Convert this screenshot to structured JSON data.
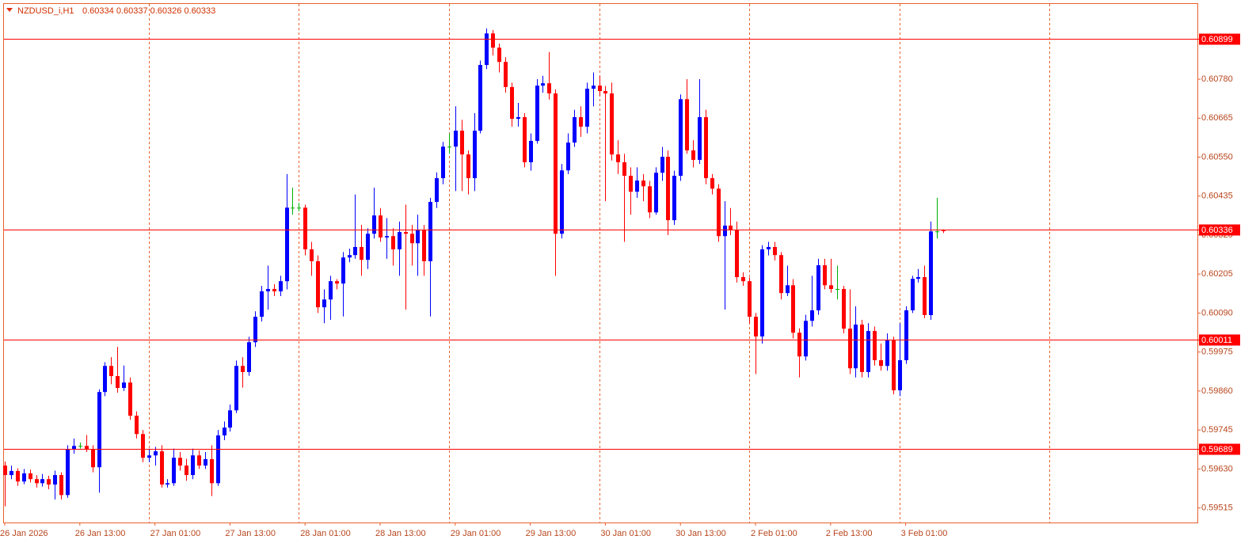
{
  "chart_data": {
    "type": "candlestick",
    "title": "NZDUSD_i,H1",
    "quote": "0.60334 0.60337 0.60326 0.60333",
    "up_color": "#0000ff",
    "down_color": "#ff0000",
    "doji_color": "#00b000",
    "level_color": "#ff0000",
    "ylim": [
      0.59472,
      0.61002
    ],
    "yticks": [
      {
        "value": 0.6078,
        "label": "0.60780"
      },
      0.60665,
      {
        "value": 0.6055,
        "label": "0.60550"
      },
      0.60435,
      {
        "value": 0.6032,
        "label": "0.60320"
      },
      0.60205,
      {
        "value": 0.6009,
        "label": "0.60090"
      },
      0.59975,
      {
        "value": 0.5986,
        "label": "0.59860"
      },
      0.59745,
      {
        "value": 0.5963,
        "label": "0.59630"
      },
      0.59515
    ],
    "levels": [
      0.60899,
      0.60336,
      0.60011,
      0.59689
    ],
    "categories": [
      "26 Jan 2026",
      null,
      null,
      null,
      null,
      null,
      null,
      null,
      null,
      null,
      null,
      null,
      "26 Jan 13:00",
      null,
      null,
      null,
      null,
      null,
      null,
      null,
      null,
      null,
      null,
      null,
      "27 Jan 01:00",
      null,
      null,
      null,
      null,
      null,
      null,
      null,
      null,
      null,
      null,
      null,
      "27 Jan 13:00",
      null,
      null,
      null,
      null,
      null,
      null,
      null,
      null,
      null,
      null,
      null,
      "28 Jan 01:00",
      null,
      null,
      null,
      null,
      null,
      null,
      null,
      null,
      null,
      null,
      null,
      "28 Jan 13:00",
      null,
      null,
      null,
      null,
      null,
      null,
      null,
      null,
      null,
      null,
      null,
      "29 Jan 01:00",
      null,
      null,
      null,
      null,
      null,
      null,
      null,
      null,
      null,
      null,
      null,
      "29 Jan 13:00",
      null,
      null,
      null,
      null,
      null,
      null,
      null,
      null,
      null,
      null,
      null,
      "30 Jan 01:00",
      null,
      null,
      null,
      null,
      null,
      null,
      null,
      null,
      null,
      null,
      null,
      "30 Jan 13:00",
      null,
      null,
      null,
      null,
      null,
      null,
      null,
      null,
      null,
      null,
      null,
      "2 Feb 01:00",
      null,
      null,
      null,
      null,
      null,
      null,
      null,
      null,
      null,
      null,
      null,
      "2 Feb 13:00",
      null,
      null,
      null,
      null,
      null,
      null,
      null,
      null,
      null,
      null,
      null,
      "3 Feb 01:00",
      null,
      null,
      null,
      null,
      null,
      null
    ],
    "open": [
      0.5964,
      0.59612,
      0.59624,
      0.59593,
      0.59617,
      0.596,
      0.59588,
      0.596,
      0.59584,
      0.59612,
      0.59553,
      0.59687,
      0.59698,
      0.59698,
      0.59687,
      0.59635,
      0.59857,
      0.59934,
      0.59904,
      0.59869,
      0.59885,
      0.59787,
      0.59733,
      0.59663,
      0.5967,
      0.59682,
      0.59584,
      0.59588,
      0.59663,
      0.5964,
      0.59612,
      0.5967,
      0.5964,
      0.59659,
      0.59588,
      0.59729,
      0.59752,
      0.59803,
      0.59934,
      0.59916,
      0.60004,
      0.60079,
      0.60154,
      0.60161,
      0.60154,
      0.60184,
      0.60401,
      0.60401,
      0.60401,
      0.60278,
      0.60243,
      0.60107,
      0.6013,
      0.60184,
      0.60177,
      0.60254,
      0.60261,
      0.60285,
      0.60247,
      0.60324,
      0.60378,
      0.60313,
      0.60317,
      0.60278,
      0.60329,
      0.60324,
      0.60296,
      0.60336,
      0.60243,
      0.60418,
      0.60488,
      0.60581,
      0.60581,
      0.60628,
      0.60558,
      0.60488,
      0.60628,
      0.60822,
      0.60915,
      0.60873,
      0.60831,
      0.60757,
      0.60663,
      0.60668,
      0.60535,
      0.60598,
      0.60761,
      0.60768,
      0.60738,
      0.60324,
      0.60511,
      0.60593,
      0.60668,
      0.6064,
      0.60752,
      0.60761,
      0.60745,
      0.60738,
      0.60558,
      0.60535,
      0.60495,
      0.60448,
      0.60481,
      0.60464,
      0.60387,
      0.60504,
      0.60551,
      0.60364,
      0.60495,
      0.60721,
      0.6057,
      0.60542,
      0.60668,
      0.60488,
      0.60457,
      0.60317,
      0.60348,
      0.60336,
      0.60196,
      0.60184,
      0.60079,
      0.60021,
      0.60278,
      0.60285,
      0.60261,
      0.60149,
      0.60172,
      0.60032,
      0.59962,
      0.60067,
      0.60098,
      0.60231,
      0.60172,
      0.60161,
      0.60161,
      0.60044,
      0.59927,
      0.60056,
      0.59916,
      0.60037,
      0.59951,
      0.59934,
      0.60009,
      0.59862,
      0.59951,
      0.60098,
      0.60191,
      0.60196,
      0.60084,
      0.60331,
      0.60334
    ],
    "high": [
      0.59652,
      0.5964,
      0.59632,
      0.5963,
      0.59628,
      0.59612,
      0.59615,
      0.5961,
      0.59625,
      0.5962,
      0.597,
      0.5972,
      0.59708,
      0.5973,
      0.597,
      0.59865,
      0.59945,
      0.5996,
      0.5999,
      0.59935,
      0.599,
      0.598,
      0.59745,
      0.5969,
      0.59695,
      0.597,
      0.596,
      0.5969,
      0.5968,
      0.5966,
      0.5969,
      0.59685,
      0.5968,
      0.597,
      0.59745,
      0.5977,
      0.5982,
      0.5995,
      0.5996,
      0.6002,
      0.60095,
      0.6017,
      0.6023,
      0.60175,
      0.602,
      0.605,
      0.6046,
      0.60415,
      0.6041,
      0.603,
      0.6026,
      0.6016,
      0.602,
      0.6019,
      0.6027,
      0.6028,
      0.6044,
      0.6035,
      0.6034,
      0.6046,
      0.604,
      0.6037,
      0.6034,
      0.6036,
      0.6041,
      0.6035,
      0.6038,
      0.6035,
      0.6043,
      0.60505,
      0.60595,
      0.6062,
      0.607,
      0.6066,
      0.6057,
      0.6068,
      0.60835,
      0.6093,
      0.60925,
      0.60885,
      0.60845,
      0.6077,
      0.6071,
      0.6068,
      0.6062,
      0.6078,
      0.6079,
      0.6086,
      0.6075,
      0.6053,
      0.6062,
      0.6069,
      0.607,
      0.6077,
      0.608,
      0.6079,
      0.6076,
      0.6077,
      0.606,
      0.6056,
      0.6052,
      0.6052,
      0.605,
      0.6048,
      0.6052,
      0.6058,
      0.6057,
      0.6051,
      0.60735,
      0.6078,
      0.606,
      0.6078,
      0.6069,
      0.605,
      0.6047,
      0.6042,
      0.604,
      0.6036,
      0.6021,
      0.60195,
      0.6009,
      0.6029,
      0.603,
      0.603,
      0.6027,
      0.6023,
      0.6019,
      0.60045,
      0.60085,
      0.602,
      0.6025,
      0.6025,
      0.6025,
      0.6023,
      0.6017,
      0.6016,
      0.6011,
      0.6007,
      0.6006,
      0.6005,
      0.6,
      0.6003,
      0.6002,
      0.6006,
      0.6011,
      0.602,
      0.6022,
      0.6023,
      0.6036,
      0.6043,
      0.60337
    ],
    "low": [
      0.5952,
      0.596,
      0.5958,
      0.59585,
      0.5959,
      0.59575,
      0.59578,
      0.5957,
      0.5954,
      0.5954,
      0.59545,
      0.59675,
      0.5969,
      0.5968,
      0.5962,
      0.5956,
      0.59845,
      0.5988,
      0.59855,
      0.5986,
      0.59775,
      0.5972,
      0.5965,
      0.5965,
      0.5964,
      0.59575,
      0.59575,
      0.5958,
      0.59625,
      0.59595,
      0.596,
      0.5963,
      0.5963,
      0.5955,
      0.5958,
      0.59715,
      0.5974,
      0.59795,
      0.5987,
      0.59905,
      0.5999,
      0.60065,
      0.601,
      0.6014,
      0.6014,
      0.6016,
      0.6038,
      0.6039,
      0.6026,
      0.602,
      0.6009,
      0.6006,
      0.6007,
      0.6016,
      0.6008,
      0.6024,
      0.6025,
      0.602,
      0.6022,
      0.6031,
      0.603,
      0.6025,
      0.6023,
      0.602,
      0.601,
      0.6023,
      0.602,
      0.602,
      0.6008,
      0.604,
      0.6047,
      0.6056,
      0.6045,
      0.6045,
      0.6044,
      0.6045,
      0.6062,
      0.6081,
      0.6085,
      0.608,
      0.6074,
      0.6064,
      0.6064,
      0.6052,
      0.6051,
      0.6059,
      0.6074,
      0.6072,
      0.602,
      0.6031,
      0.605,
      0.6058,
      0.6061,
      0.6062,
      0.607,
      0.6073,
      0.6042,
      0.6054,
      0.605,
      0.603,
      0.6038,
      0.6043,
      0.6042,
      0.6037,
      0.6038,
      0.6048,
      0.6032,
      0.6035,
      0.6048,
      0.6056,
      0.6052,
      0.6053,
      0.6047,
      0.6044,
      0.603,
      0.601,
      0.6032,
      0.6018,
      0.6017,
      0.6006,
      0.5991,
      0.6,
      0.6026,
      0.60245,
      0.6013,
      0.6014,
      0.60015,
      0.599,
      0.5995,
      0.6005,
      0.60085,
      0.6016,
      0.6015,
      0.6013,
      0.6003,
      0.5991,
      0.599,
      0.599,
      0.599,
      0.59935,
      0.5992,
      0.5992,
      0.5985,
      0.59845,
      0.5994,
      0.6009,
      0.6018,
      0.60075,
      0.6007,
      0.6031,
      0.60326
    ],
    "close": [
      0.59612,
      0.59624,
      0.59593,
      0.59617,
      0.596,
      0.59588,
      0.596,
      0.59584,
      0.59612,
      0.59553,
      0.59687,
      0.59698,
      0.59698,
      0.59687,
      0.59635,
      0.59857,
      0.59934,
      0.59904,
      0.59869,
      0.59885,
      0.59787,
      0.59733,
      0.59663,
      0.5967,
      0.59682,
      0.59584,
      0.59588,
      0.59663,
      0.5964,
      0.59612,
      0.5967,
      0.5964,
      0.59659,
      0.59588,
      0.59729,
      0.59752,
      0.59803,
      0.59934,
      0.59916,
      0.60004,
      0.60079,
      0.60154,
      0.60161,
      0.60154,
      0.60184,
      0.60401,
      0.60401,
      0.60401,
      0.60278,
      0.60243,
      0.60107,
      0.6013,
      0.60184,
      0.60177,
      0.60254,
      0.60261,
      0.60285,
      0.60247,
      0.60324,
      0.60378,
      0.60313,
      0.60317,
      0.60278,
      0.60329,
      0.60324,
      0.60296,
      0.60336,
      0.60243,
      0.60418,
      0.60488,
      0.60581,
      0.60581,
      0.60628,
      0.60558,
      0.60488,
      0.60628,
      0.60822,
      0.60915,
      0.60873,
      0.60831,
      0.60757,
      0.60663,
      0.60668,
      0.60535,
      0.60598,
      0.60761,
      0.60768,
      0.60738,
      0.60324,
      0.60511,
      0.60593,
      0.60668,
      0.6064,
      0.60752,
      0.60761,
      0.60745,
      0.60738,
      0.60558,
      0.60535,
      0.60495,
      0.60448,
      0.60481,
      0.60464,
      0.60387,
      0.60504,
      0.60551,
      0.60364,
      0.60495,
      0.60721,
      0.6057,
      0.60542,
      0.60668,
      0.60488,
      0.60457,
      0.60317,
      0.60348,
      0.60336,
      0.60196,
      0.60184,
      0.60079,
      0.60021,
      0.60278,
      0.60285,
      0.60261,
      0.60149,
      0.60172,
      0.60032,
      0.59962,
      0.60067,
      0.60098,
      0.60231,
      0.60172,
      0.60161,
      0.60161,
      0.60044,
      0.59927,
      0.60056,
      0.59916,
      0.60037,
      0.59951,
      0.59934,
      0.60009,
      0.59862,
      0.59951,
      0.60098,
      0.60191,
      0.60196,
      0.60084,
      0.60331,
      0.60331,
      0.60333
    ]
  }
}
